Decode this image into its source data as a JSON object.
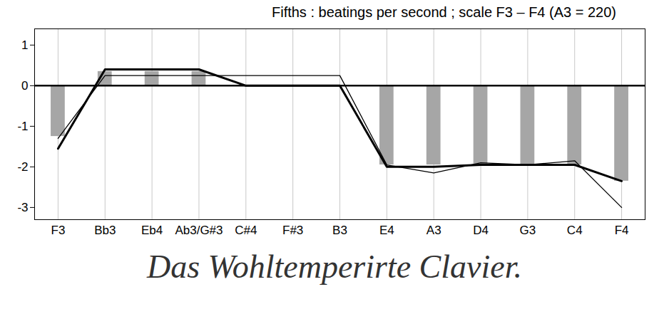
{
  "chart_data": {
    "type": "bar",
    "title": "Fifths : beatings per second ; scale F3 – F4 (A3 = 220)",
    "annotations": [
      "Das Wohltemperirte Clavier."
    ],
    "categories": [
      "F3",
      "Bb3",
      "Eb4",
      "Ab3/G#3",
      "C#4",
      "F#3",
      "B3",
      "E4",
      "A3",
      "D4",
      "G3",
      "C4",
      "F4"
    ],
    "series": [
      {
        "type": "bar",
        "color": "#a6a6a6",
        "values": [
          -1.25,
          0.35,
          0.35,
          0.35,
          0,
          0,
          0,
          -1.95,
          -1.95,
          -1.95,
          -1.95,
          -1.95,
          -2.35
        ]
      },
      {
        "type": "line",
        "color": "#000000",
        "line_style": "bold",
        "values": [
          -1.55,
          0.4,
          0.4,
          0.4,
          0,
          0,
          0,
          -2.0,
          -2.0,
          -1.95,
          -1.95,
          -1.95,
          -2.35
        ]
      },
      {
        "type": "line",
        "color": "#000000",
        "line_style": "solid",
        "values": [
          -1.3,
          0.25,
          0.25,
          0.25,
          0.25,
          0.25,
          0.25,
          -1.95,
          -2.15,
          -1.9,
          -1.95,
          -1.85,
          -3.0
        ]
      }
    ],
    "ylim": [
      -3.3,
      1.4
    ],
    "yticks": [
      -3,
      -2,
      -1,
      0,
      1
    ],
    "grid": true
  }
}
